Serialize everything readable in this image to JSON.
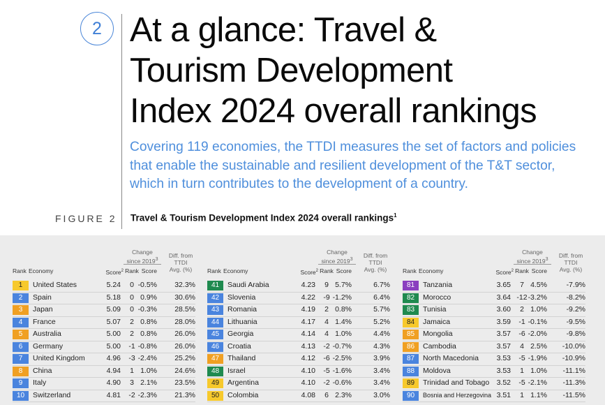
{
  "chapter": "2",
  "title_lines": [
    "At a glance: Travel &",
    "Tourism Development",
    "Index 2024 overall rankings"
  ],
  "subtitle": "Covering 119 economies, the TTDI measures the set of factors and policies that enable the sustainable and resilient development of the T&T sector, which in turn contributes to the development of a country.",
  "figure_label": "FIGURE 2",
  "figure_title": "Travel & Tourism Development Index 2024 overall rankings",
  "figure_title_sup": "1",
  "headers": {
    "change_group": [
      "Change",
      "since 2019"
    ],
    "change_sup": "3",
    "diff_group": [
      "Diff. from",
      "TTDI",
      "Avg. (%)"
    ],
    "rank": "Rank",
    "economy": "Economy",
    "score": "Score",
    "score_sup": "2",
    "change_rank": "Rank",
    "change_score": "Score"
  },
  "colors": {
    "yellow": "#f7c92c",
    "blue": "#4a84de",
    "orange": "#f0a023",
    "green": "#1f8a4f",
    "purple": "#8a3fbf",
    "accent": "#4f8fdc"
  },
  "columns": [
    {
      "rows": [
        {
          "rank": "1",
          "color": "yellow",
          "economy": "United States",
          "score": "5.24",
          "chg_rank": "0",
          "chg_score": "-0.5%",
          "diff": "32.3%"
        },
        {
          "rank": "2",
          "color": "blue",
          "economy": "Spain",
          "score": "5.18",
          "chg_rank": "0",
          "chg_score": "0.9%",
          "diff": "30.6%"
        },
        {
          "rank": "3",
          "color": "orange",
          "economy": "Japan",
          "score": "5.09",
          "chg_rank": "0",
          "chg_score": "-0.3%",
          "diff": "28.5%"
        },
        {
          "rank": "4",
          "color": "blue",
          "economy": "France",
          "score": "5.07",
          "chg_rank": "2",
          "chg_score": "0.8%",
          "diff": "28.0%"
        },
        {
          "rank": "5",
          "color": "orange",
          "economy": "Australia",
          "score": "5.00",
          "chg_rank": "2",
          "chg_score": "0.8%",
          "diff": "26.0%"
        },
        {
          "rank": "6",
          "color": "blue",
          "economy": "Germany",
          "score": "5.00",
          "chg_rank": "-1",
          "chg_score": "-0.8%",
          "diff": "26.0%"
        },
        {
          "rank": "7",
          "color": "blue",
          "economy": "United Kingdom",
          "score": "4.96",
          "chg_rank": "-3",
          "chg_score": "-2.4%",
          "diff": "25.2%"
        },
        {
          "rank": "8",
          "color": "orange",
          "economy": "China",
          "score": "4.94",
          "chg_rank": "1",
          "chg_score": "1.0%",
          "diff": "24.6%"
        },
        {
          "rank": "9",
          "color": "blue",
          "economy": "Italy",
          "score": "4.90",
          "chg_rank": "3",
          "chg_score": "2.1%",
          "diff": "23.5%"
        },
        {
          "rank": "10",
          "color": "blue",
          "economy": "Switzerland",
          "score": "4.81",
          "chg_rank": "-2",
          "chg_score": "-2.3%",
          "diff": "21.3%"
        }
      ]
    },
    {
      "rows": [
        {
          "rank": "41",
          "color": "green",
          "economy": "Saudi Arabia",
          "score": "4.23",
          "chg_rank": "9",
          "chg_score": "5.7%",
          "diff": "6.7%"
        },
        {
          "rank": "42",
          "color": "blue",
          "economy": "Slovenia",
          "score": "4.22",
          "chg_rank": "-9",
          "chg_score": "-1.2%",
          "diff": "6.4%"
        },
        {
          "rank": "43",
          "color": "blue",
          "economy": "Romania",
          "score": "4.19",
          "chg_rank": "2",
          "chg_score": "0.8%",
          "diff": "5.7%"
        },
        {
          "rank": "44",
          "color": "blue",
          "economy": "Lithuania",
          "score": "4.17",
          "chg_rank": "4",
          "chg_score": "1.4%",
          "diff": "5.2%"
        },
        {
          "rank": "45",
          "color": "blue",
          "economy": "Georgia",
          "score": "4.14",
          "chg_rank": "4",
          "chg_score": "1.0%",
          "diff": "4.4%"
        },
        {
          "rank": "46",
          "color": "blue",
          "economy": "Croatia",
          "score": "4.13",
          "chg_rank": "-2",
          "chg_score": "-0.7%",
          "diff": "4.3%"
        },
        {
          "rank": "47",
          "color": "orange",
          "economy": "Thailand",
          "score": "4.12",
          "chg_rank": "-6",
          "chg_score": "-2.5%",
          "diff": "3.9%"
        },
        {
          "rank": "48",
          "color": "green",
          "economy": "Israel",
          "score": "4.10",
          "chg_rank": "-5",
          "chg_score": "-1.6%",
          "diff": "3.4%"
        },
        {
          "rank": "49",
          "color": "yellow",
          "economy": "Argentina",
          "score": "4.10",
          "chg_rank": "-2",
          "chg_score": "-0.6%",
          "diff": "3.4%"
        },
        {
          "rank": "50",
          "color": "yellow",
          "economy": "Colombia",
          "score": "4.08",
          "chg_rank": "6",
          "chg_score": "2.3%",
          "diff": "3.0%"
        }
      ]
    },
    {
      "rows": [
        {
          "rank": "81",
          "color": "purple",
          "economy": "Tanzania",
          "score": "3.65",
          "chg_rank": "7",
          "chg_score": "4.5%",
          "diff": "-7.9%"
        },
        {
          "rank": "82",
          "color": "green",
          "economy": "Morocco",
          "score": "3.64",
          "chg_rank": "-12",
          "chg_score": "-3.2%",
          "diff": "-8.2%"
        },
        {
          "rank": "83",
          "color": "green",
          "economy": "Tunisia",
          "score": "3.60",
          "chg_rank": "2",
          "chg_score": "1.0%",
          "diff": "-9.2%"
        },
        {
          "rank": "84",
          "color": "yellow",
          "economy": "Jamaica",
          "score": "3.59",
          "chg_rank": "-1",
          "chg_score": "-0.1%",
          "diff": "-9.5%"
        },
        {
          "rank": "85",
          "color": "orange",
          "economy": "Mongolia",
          "score": "3.57",
          "chg_rank": "-6",
          "chg_score": "-2.0%",
          "diff": "-9.8%"
        },
        {
          "rank": "86",
          "color": "orange",
          "economy": "Cambodia",
          "score": "3.57",
          "chg_rank": "4",
          "chg_score": "2.5%",
          "diff": "-10.0%"
        },
        {
          "rank": "87",
          "color": "blue",
          "economy": "North Macedonia",
          "score": "3.53",
          "chg_rank": "-5",
          "chg_score": "-1.9%",
          "diff": "-10.9%"
        },
        {
          "rank": "88",
          "color": "blue",
          "economy": "Moldova",
          "score": "3.53",
          "chg_rank": "1",
          "chg_score": "1.0%",
          "diff": "-11.1%"
        },
        {
          "rank": "89",
          "color": "yellow",
          "economy": "Trinidad and Tobago",
          "score": "3.52",
          "chg_rank": "-5",
          "chg_score": "-2.1%",
          "diff": "-11.3%"
        },
        {
          "rank": "90",
          "color": "blue",
          "economy": "Bosnia and Herzegovina",
          "score": "3.51",
          "chg_rank": "1",
          "chg_score": "1.1%",
          "diff": "-11.5%"
        }
      ]
    }
  ]
}
